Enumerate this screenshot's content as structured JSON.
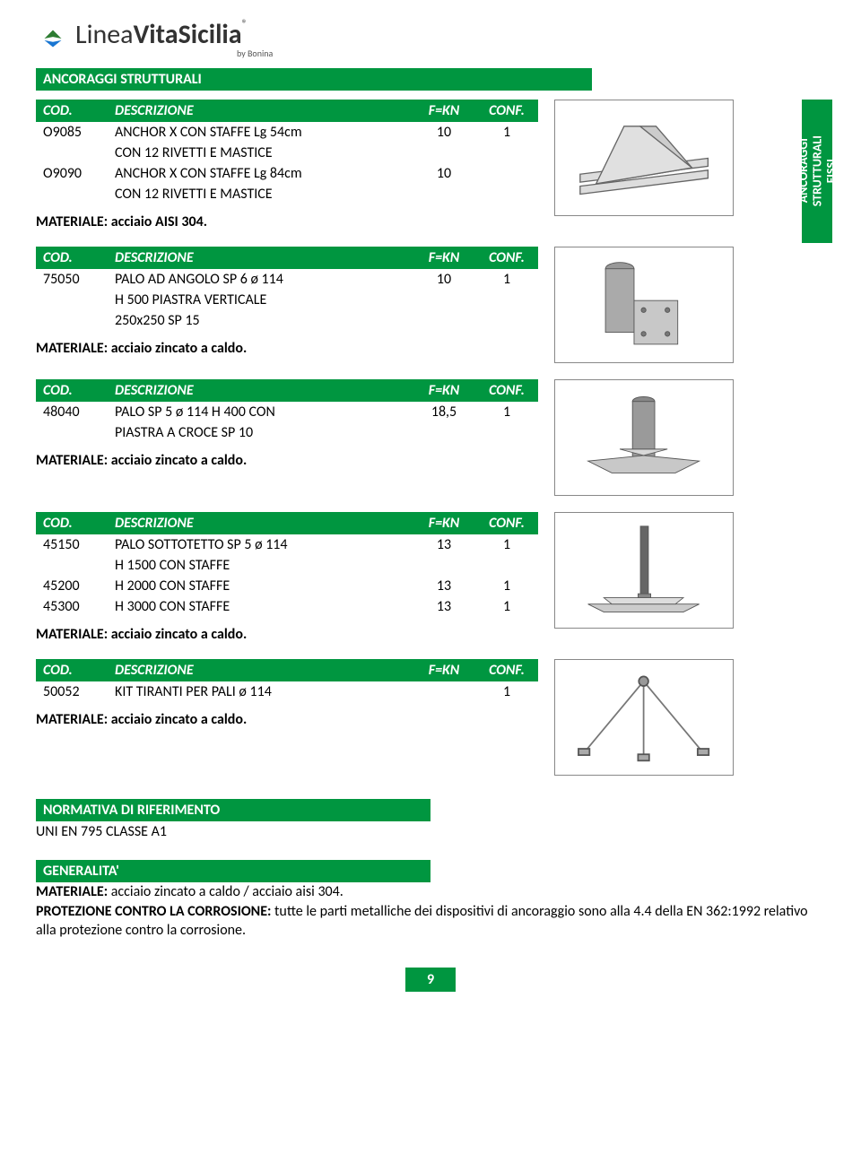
{
  "logo": {
    "brand_prefix": "Linea",
    "brand_mid": "Vita",
    "brand_suffix": "Sicilia",
    "reg": "®",
    "sub": "by Bonina"
  },
  "section_title": "ANCORAGGI STRUTTURALI",
  "side_tab": "ANCORAGGI\nSTRUTTURALI\nFISSI",
  "headers": {
    "cod": "COD.",
    "desc": "DESCRIZIONE",
    "fkn": "F=KN",
    "conf": "CONF."
  },
  "blocks": [
    {
      "material": "MATERIALE: acciaio AISI 304.",
      "rows": [
        {
          "cod": "O9085",
          "desc": "ANCHOR X CON STAFFE Lg 54cm\nCON 12 RIVETTI E MASTICE",
          "fkn": "10",
          "conf": "1"
        },
        {
          "cod": "O9090",
          "desc": "ANCHOR X CON STAFFE Lg 84cm\nCON 12 RIVETTI E MASTICE",
          "fkn": "10",
          "conf": ""
        }
      ],
      "image": "anchor-x"
    },
    {
      "material": "MATERIALE: acciaio zincato a caldo.",
      "rows": [
        {
          "cod": "75050",
          "desc": "PALO AD ANGOLO SP 6 ø 114\nH 500 PIASTRA VERTICALE\n250x250 SP 15",
          "fkn": "10",
          "conf": "1"
        }
      ],
      "image": "palo-angolo"
    },
    {
      "material": "MATERIALE: acciaio zincato a caldo.",
      "rows": [
        {
          "cod": "48040",
          "desc": "PALO SP 5 ø 114 H 400 CON\nPIASTRA A CROCE SP 10",
          "fkn": "18,5",
          "conf": "1"
        }
      ],
      "image": "palo-croce"
    },
    {
      "material": "MATERIALE: acciaio zincato a caldo.",
      "rows": [
        {
          "cod": "45150",
          "desc": "PALO SOTTOTETTO SP 5 ø 114\nH 1500 CON STAFFE",
          "fkn": "13",
          "conf": "1"
        },
        {
          "cod": "45200",
          "desc": "H 2000 CON STAFFE",
          "fkn": "13",
          "conf": "1"
        },
        {
          "cod": "45300",
          "desc": "H 3000 CON STAFFE",
          "fkn": "13",
          "conf": "1"
        }
      ],
      "image": "palo-sottotetto"
    },
    {
      "material": "MATERIALE: acciaio zincato a caldo.",
      "rows": [
        {
          "cod": "50052",
          "desc": "KIT TIRANTI PER PALI ø 114",
          "fkn": "",
          "conf": "1"
        }
      ],
      "image": "tiranti"
    }
  ],
  "normativa": {
    "title": "NORMATIVA DI RIFERIMENTO",
    "body": "UNI EN 795 CLASSE A1"
  },
  "generalita": {
    "title": "GENERALITA'",
    "material_label": "MATERIALE:",
    "material_body": " acciaio zincato a caldo / acciaio aisi 304.",
    "prot_label": "PROTEZIONE CONTRO LA CORROSIONE:",
    "prot_body": " tutte le parti metalliche dei dispositivi di ancoraggio sono alla 4.4 della EN 362:1992 relativo alla protezione contro la corrosione."
  },
  "page_number": "9",
  "colors": {
    "brand_green": "#009640",
    "logo_accent": "#2e7d32",
    "logo_blue": "#1976d2",
    "border": "#888888"
  }
}
